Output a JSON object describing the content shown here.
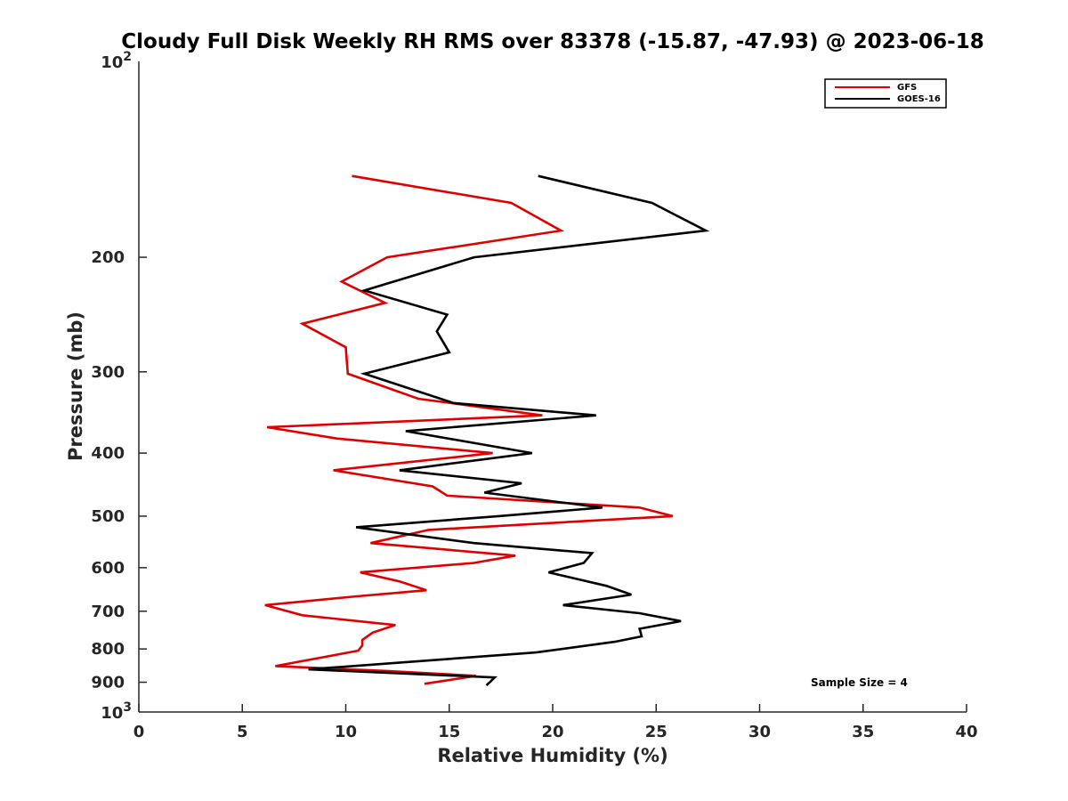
{
  "colors": {
    "GFS": "#e00000",
    "GOES-16": "#000000"
  },
  "chart_data": {
    "type": "line",
    "title": "Cloudy Full Disk Weekly RH RMS over 83378 (-15.87, -47.93) @ 2023-06-18",
    "xlabel": "Relative Humidity (%)",
    "ylabel": "Pressure (mb)",
    "xlim": [
      0,
      40
    ],
    "ylim": [
      100,
      1000
    ],
    "y_scale": "log",
    "y_reversed": true,
    "x_ticks": [
      0,
      5,
      10,
      15,
      20,
      25,
      30,
      35,
      40
    ],
    "x_tick_labels": [
      "0",
      "5",
      "10",
      "15",
      "20",
      "25",
      "30",
      "35",
      "40"
    ],
    "y_ticks": [
      200,
      300,
      400,
      500,
      600,
      700,
      800,
      900
    ],
    "y_tick_labels": [
      "200",
      "300",
      "400",
      "500",
      "600",
      "700",
      "800",
      "900"
    ],
    "y_edge_labels": [
      {
        "value": 100,
        "base": "10",
        "exp": "2"
      },
      {
        "value": 1000,
        "base": "10",
        "exp": "3"
      }
    ],
    "grid": false,
    "legend_position": "top-right",
    "annotation": "Sample Size = 4",
    "series": [
      {
        "name": "GFS",
        "color": "#e00000",
        "points": [
          [
            10.3,
            150
          ],
          [
            18.0,
            165
          ],
          [
            20.4,
            182
          ],
          [
            12.0,
            200
          ],
          [
            9.8,
            218
          ],
          [
            11.9,
            235
          ],
          [
            7.9,
            253
          ],
          [
            10.0,
            275
          ],
          [
            10.1,
            302
          ],
          [
            13.5,
            330
          ],
          [
            19.5,
            350
          ],
          [
            6.2,
            365
          ],
          [
            9.6,
            380
          ],
          [
            17.1,
            400
          ],
          [
            9.4,
            425
          ],
          [
            14.2,
            450
          ],
          [
            14.9,
            465
          ],
          [
            24.2,
            485
          ],
          [
            25.8,
            500
          ],
          [
            14.0,
            525
          ],
          [
            11.2,
            550
          ],
          [
            18.2,
            575
          ],
          [
            16.2,
            590
          ],
          [
            10.7,
            610
          ],
          [
            12.6,
            630
          ],
          [
            13.9,
            650
          ],
          [
            10.3,
            665
          ],
          [
            6.1,
            685
          ],
          [
            7.9,
            710
          ],
          [
            12.4,
            735
          ],
          [
            11.3,
            755
          ],
          [
            10.8,
            775
          ],
          [
            10.8,
            790
          ],
          [
            10.6,
            805
          ],
          [
            6.6,
            850
          ],
          [
            12.1,
            865
          ],
          [
            16.3,
            880
          ],
          [
            13.8,
            905
          ]
        ]
      },
      {
        "name": "GOES-16",
        "color": "#000000",
        "points": [
          [
            19.3,
            150
          ],
          [
            24.8,
            165
          ],
          [
            27.4,
            182
          ],
          [
            16.2,
            200
          ],
          [
            10.9,
            225
          ],
          [
            14.9,
            245
          ],
          [
            14.4,
            260
          ],
          [
            15.0,
            280
          ],
          [
            10.9,
            302
          ],
          [
            15.2,
            335
          ],
          [
            22.1,
            350
          ],
          [
            12.9,
            370
          ],
          [
            19.0,
            400
          ],
          [
            12.6,
            425
          ],
          [
            18.5,
            445
          ],
          [
            16.7,
            460
          ],
          [
            22.4,
            485
          ],
          [
            17.4,
            500
          ],
          [
            10.5,
            520
          ],
          [
            16.2,
            550
          ],
          [
            21.9,
            570
          ],
          [
            21.5,
            590
          ],
          [
            19.8,
            610
          ],
          [
            22.6,
            640
          ],
          [
            23.8,
            660
          ],
          [
            20.5,
            685
          ],
          [
            24.2,
            705
          ],
          [
            26.2,
            725
          ],
          [
            24.2,
            745
          ],
          [
            24.3,
            765
          ],
          [
            23.0,
            780
          ],
          [
            19.2,
            810
          ],
          [
            8.2,
            860
          ],
          [
            17.2,
            885
          ],
          [
            16.8,
            910
          ]
        ]
      }
    ]
  }
}
